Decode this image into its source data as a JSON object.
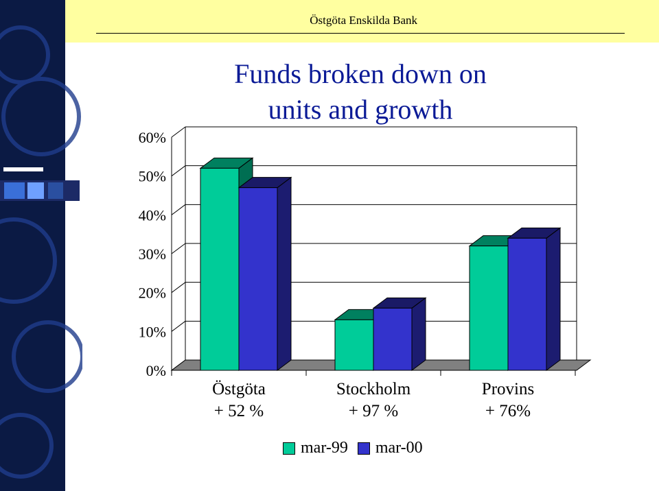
{
  "header": {
    "brand": "Östgöta Enskilda Bank"
  },
  "title_lines": [
    "Funds broken down on",
    "units and growth"
  ],
  "colors": {
    "series1": "#00cc99",
    "series2": "#3333cc",
    "title": "#0a1a96",
    "header_bg": "#ffffa0",
    "side_bg": "#0b1a44"
  },
  "chart_data": {
    "type": "bar",
    "title": "Funds broken down on units and growth",
    "categories": [
      "Östgöta",
      "Stockholm",
      "Provins"
    ],
    "category_sublabels": [
      "+ 52 %",
      "+ 97 %",
      "+ 76%"
    ],
    "series": [
      {
        "name": "mar-99",
        "values": [
          52,
          13,
          32
        ]
      },
      {
        "name": "mar-00",
        "values": [
          47,
          16,
          34
        ]
      }
    ],
    "yticks": [
      "0%",
      "10%",
      "20%",
      "30%",
      "40%",
      "50%",
      "60%"
    ],
    "ylim": [
      0,
      60
    ],
    "grid": true,
    "legend": "bottom"
  }
}
